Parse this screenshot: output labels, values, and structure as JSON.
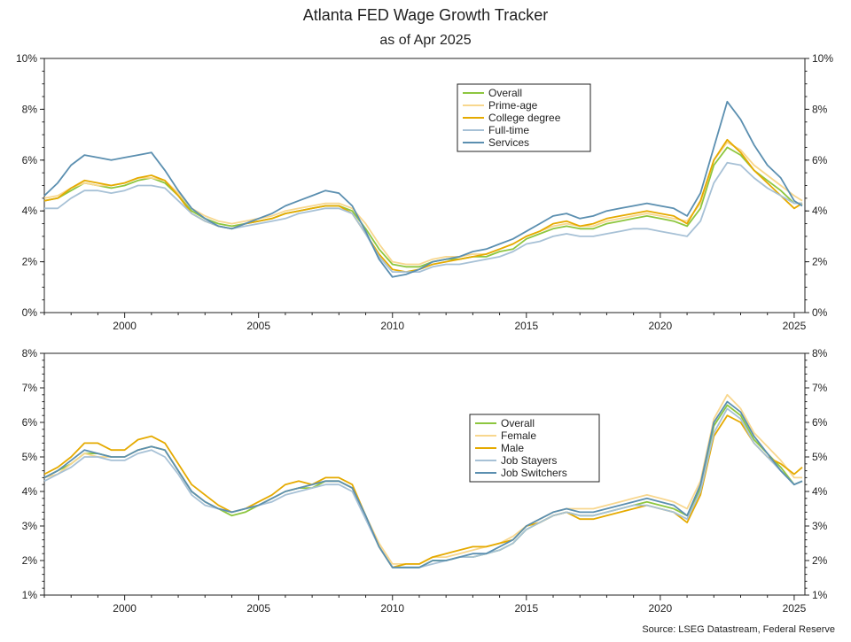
{
  "title": "Atlanta FED Wage Growth Tracker",
  "subtitle": "as of Apr 2025",
  "source": "Source: LSEG Datastream, Federal Reserve",
  "chart_data": [
    {
      "type": "line",
      "xlim": [
        1997.0,
        2025.4
      ],
      "ylim": [
        0,
        10
      ],
      "x_ticks": [
        2000,
        2005,
        2010,
        2015,
        2020,
        2025
      ],
      "x_tick_labels": [
        "2000",
        "2005",
        "2010",
        "2015",
        "2020",
        "2025"
      ],
      "y_ticks": [
        0,
        2,
        4,
        6,
        8,
        10
      ],
      "y_tick_labels": [
        "0%",
        "2%",
        "4%",
        "6%",
        "8%",
        "10%"
      ],
      "legend_position": "top-center-right",
      "x": [
        1997.0,
        1997.5,
        1998.0,
        1998.5,
        1999.0,
        1999.5,
        2000.0,
        2000.5,
        2001.0,
        2001.5,
        2002.0,
        2002.5,
        2003.0,
        2003.5,
        2004.0,
        2004.5,
        2005.0,
        2005.5,
        2006.0,
        2006.5,
        2007.0,
        2007.5,
        2008.0,
        2008.5,
        2009.0,
        2009.5,
        2010.0,
        2010.5,
        2011.0,
        2011.5,
        2012.0,
        2012.5,
        2013.0,
        2013.5,
        2014.0,
        2014.5,
        2015.0,
        2015.5,
        2016.0,
        2016.5,
        2017.0,
        2017.5,
        2018.0,
        2018.5,
        2019.0,
        2019.5,
        2020.0,
        2020.5,
        2021.0,
        2021.5,
        2022.0,
        2022.5,
        2023.0,
        2023.5,
        2024.0,
        2024.5,
        2025.0,
        2025.3
      ],
      "series": [
        {
          "name": "Overall",
          "color": "#8dc63f",
          "values": [
            4.4,
            4.5,
            4.8,
            5.1,
            5.0,
            4.9,
            5.0,
            5.2,
            5.3,
            5.1,
            4.6,
            4.0,
            3.7,
            3.5,
            3.4,
            3.5,
            3.6,
            3.7,
            3.9,
            4.0,
            4.1,
            4.2,
            4.2,
            4.0,
            3.3,
            2.5,
            1.9,
            1.8,
            1.8,
            2.0,
            2.1,
            2.1,
            2.2,
            2.2,
            2.4,
            2.5,
            2.9,
            3.1,
            3.3,
            3.4,
            3.3,
            3.3,
            3.5,
            3.6,
            3.7,
            3.8,
            3.7,
            3.6,
            3.4,
            4.1,
            5.8,
            6.5,
            6.2,
            5.6,
            5.2,
            4.8,
            4.3,
            4.3
          ]
        },
        {
          "name": "Prime-age",
          "color": "#f8d78e",
          "values": [
            4.5,
            4.6,
            4.9,
            5.1,
            5.0,
            5.0,
            5.1,
            5.3,
            5.3,
            5.2,
            4.7,
            4.1,
            3.8,
            3.6,
            3.5,
            3.6,
            3.7,
            3.8,
            4.0,
            4.1,
            4.2,
            4.3,
            4.3,
            4.1,
            3.5,
            2.7,
            2.0,
            1.9,
            1.9,
            2.1,
            2.2,
            2.2,
            2.3,
            2.3,
            2.5,
            2.7,
            3.0,
            3.2,
            3.4,
            3.5,
            3.4,
            3.4,
            3.6,
            3.7,
            3.8,
            3.9,
            3.8,
            3.7,
            3.6,
            4.3,
            6.0,
            6.7,
            6.4,
            5.8,
            5.4,
            5.0,
            4.6,
            4.4
          ]
        },
        {
          "name": "College degree",
          "color": "#e5aa00",
          "values": [
            4.4,
            4.5,
            4.9,
            5.2,
            5.1,
            5.0,
            5.1,
            5.3,
            5.4,
            5.2,
            4.6,
            3.9,
            3.6,
            3.4,
            3.3,
            3.5,
            3.6,
            3.7,
            3.9,
            4.0,
            4.1,
            4.2,
            4.2,
            3.9,
            3.1,
            2.3,
            1.7,
            1.6,
            1.7,
            1.9,
            2.0,
            2.1,
            2.2,
            2.3,
            2.5,
            2.7,
            3.0,
            3.2,
            3.5,
            3.6,
            3.4,
            3.5,
            3.7,
            3.8,
            3.9,
            4.0,
            3.9,
            3.8,
            3.5,
            4.4,
            6.0,
            6.8,
            6.3,
            5.6,
            5.1,
            4.6,
            4.1,
            4.3
          ]
        },
        {
          "name": "Full-time",
          "color": "#a7c1d6",
          "values": [
            4.1,
            4.1,
            4.5,
            4.8,
            4.8,
            4.7,
            4.8,
            5.0,
            5.0,
            4.9,
            4.4,
            3.9,
            3.6,
            3.4,
            3.3,
            3.4,
            3.5,
            3.6,
            3.7,
            3.9,
            4.0,
            4.1,
            4.1,
            3.9,
            3.1,
            2.2,
            1.6,
            1.6,
            1.6,
            1.8,
            1.9,
            1.9,
            2.0,
            2.1,
            2.2,
            2.4,
            2.7,
            2.8,
            3.0,
            3.1,
            3.0,
            3.0,
            3.1,
            3.2,
            3.3,
            3.3,
            3.2,
            3.1,
            3.0,
            3.6,
            5.1,
            5.9,
            5.8,
            5.3,
            4.9,
            4.6,
            4.3,
            4.3
          ]
        },
        {
          "name": "Services",
          "color": "#5b8fb0",
          "values": [
            4.6,
            5.1,
            5.8,
            6.2,
            6.1,
            6.0,
            6.1,
            6.2,
            6.3,
            5.6,
            4.8,
            4.1,
            3.7,
            3.4,
            3.3,
            3.5,
            3.7,
            3.9,
            4.2,
            4.4,
            4.6,
            4.8,
            4.7,
            4.2,
            3.2,
            2.1,
            1.4,
            1.5,
            1.7,
            2.0,
            2.1,
            2.2,
            2.4,
            2.5,
            2.7,
            2.9,
            3.2,
            3.5,
            3.8,
            3.9,
            3.7,
            3.8,
            4.0,
            4.1,
            4.2,
            4.3,
            4.2,
            4.1,
            3.8,
            4.7,
            6.5,
            8.3,
            7.6,
            6.6,
            5.8,
            5.3,
            4.4,
            4.2
          ]
        }
      ]
    },
    {
      "type": "line",
      "xlim": [
        1997.0,
        2025.4
      ],
      "ylim": [
        1,
        8
      ],
      "x_ticks": [
        2000,
        2005,
        2010,
        2015,
        2020,
        2025
      ],
      "x_tick_labels": [
        "2000",
        "2005",
        "2010",
        "2015",
        "2020",
        "2025"
      ],
      "y_ticks": [
        1,
        2,
        3,
        4,
        5,
        6,
        7,
        8
      ],
      "y_tick_labels": [
        "1%",
        "2%",
        "3%",
        "4%",
        "5%",
        "6%",
        "7%",
        "8%"
      ],
      "legend_position": "center-right",
      "x": [
        1997.0,
        1997.5,
        1998.0,
        1998.5,
        1999.0,
        1999.5,
        2000.0,
        2000.5,
        2001.0,
        2001.5,
        2002.0,
        2002.5,
        2003.0,
        2003.5,
        2004.0,
        2004.5,
        2005.0,
        2005.5,
        2006.0,
        2006.5,
        2007.0,
        2007.5,
        2008.0,
        2008.5,
        2009.0,
        2009.5,
        2010.0,
        2010.5,
        2011.0,
        2011.5,
        2012.0,
        2012.5,
        2013.0,
        2013.5,
        2014.0,
        2014.5,
        2015.0,
        2015.5,
        2016.0,
        2016.5,
        2017.0,
        2017.5,
        2018.0,
        2018.5,
        2019.0,
        2019.5,
        2020.0,
        2020.5,
        2021.0,
        2021.5,
        2022.0,
        2022.5,
        2023.0,
        2023.5,
        2024.0,
        2024.5,
        2025.0,
        2025.3
      ],
      "series": [
        {
          "name": "Overall",
          "color": "#8dc63f",
          "values": [
            4.4,
            4.6,
            4.8,
            5.1,
            5.1,
            5.0,
            5.0,
            5.2,
            5.3,
            5.2,
            4.6,
            4.0,
            3.7,
            3.5,
            3.3,
            3.4,
            3.6,
            3.8,
            4.0,
            4.1,
            4.1,
            4.3,
            4.3,
            4.1,
            3.3,
            2.4,
            1.8,
            1.8,
            1.8,
            2.0,
            2.0,
            2.1,
            2.1,
            2.2,
            2.3,
            2.5,
            2.9,
            3.1,
            3.3,
            3.4,
            3.3,
            3.3,
            3.4,
            3.5,
            3.6,
            3.7,
            3.6,
            3.5,
            3.3,
            4.1,
            5.9,
            6.5,
            6.2,
            5.5,
            5.1,
            4.7,
            4.2,
            4.3
          ]
        },
        {
          "name": "Female",
          "color": "#f8d78e",
          "values": [
            4.4,
            4.5,
            4.8,
            5.1,
            5.0,
            5.0,
            5.0,
            5.2,
            5.3,
            5.2,
            4.6,
            4.0,
            3.7,
            3.5,
            3.4,
            3.5,
            3.6,
            3.8,
            4.0,
            4.1,
            4.2,
            4.3,
            4.3,
            4.1,
            3.3,
            2.5,
            1.9,
            1.9,
            1.9,
            2.1,
            2.1,
            2.2,
            2.3,
            2.4,
            2.5,
            2.7,
            3.0,
            3.2,
            3.4,
            3.5,
            3.5,
            3.5,
            3.6,
            3.7,
            3.8,
            3.9,
            3.8,
            3.7,
            3.5,
            4.3,
            6.1,
            6.8,
            6.4,
            5.7,
            5.3,
            4.9,
            4.4,
            4.4
          ]
        },
        {
          "name": "Male",
          "color": "#e5aa00",
          "values": [
            4.5,
            4.7,
            5.0,
            5.4,
            5.4,
            5.2,
            5.2,
            5.5,
            5.6,
            5.4,
            4.8,
            4.2,
            3.9,
            3.6,
            3.4,
            3.5,
            3.7,
            3.9,
            4.2,
            4.3,
            4.2,
            4.4,
            4.4,
            4.2,
            3.3,
            2.4,
            1.8,
            1.9,
            1.9,
            2.1,
            2.2,
            2.3,
            2.4,
            2.4,
            2.5,
            2.6,
            3.0,
            3.1,
            3.3,
            3.4,
            3.2,
            3.2,
            3.3,
            3.4,
            3.5,
            3.6,
            3.5,
            3.4,
            3.1,
            3.9,
            5.6,
            6.2,
            6.0,
            5.4,
            5.0,
            4.8,
            4.5,
            4.7
          ]
        },
        {
          "name": "Job Stayers",
          "color": "#a7c1d6",
          "values": [
            4.3,
            4.5,
            4.7,
            5.0,
            5.0,
            4.9,
            4.9,
            5.1,
            5.2,
            5.0,
            4.5,
            3.9,
            3.6,
            3.5,
            3.4,
            3.5,
            3.6,
            3.7,
            3.9,
            4.0,
            4.1,
            4.2,
            4.2,
            4.0,
            3.2,
            2.4,
            1.8,
            1.8,
            1.8,
            1.9,
            2.0,
            2.1,
            2.1,
            2.2,
            2.3,
            2.5,
            2.9,
            3.1,
            3.3,
            3.4,
            3.3,
            3.3,
            3.4,
            3.5,
            3.6,
            3.6,
            3.5,
            3.4,
            3.2,
            4.0,
            5.7,
            6.4,
            6.1,
            5.4,
            5.0,
            4.6,
            4.2,
            4.3
          ]
        },
        {
          "name": "Job Switchers",
          "color": "#5b8fb0",
          "values": [
            4.4,
            4.6,
            4.9,
            5.2,
            5.1,
            5.0,
            5.0,
            5.2,
            5.3,
            5.2,
            4.6,
            4.0,
            3.7,
            3.5,
            3.4,
            3.5,
            3.6,
            3.8,
            4.0,
            4.1,
            4.2,
            4.3,
            4.3,
            4.1,
            3.3,
            2.4,
            1.8,
            1.8,
            1.8,
            2.0,
            2.0,
            2.1,
            2.2,
            2.2,
            2.4,
            2.6,
            3.0,
            3.2,
            3.4,
            3.5,
            3.4,
            3.4,
            3.5,
            3.6,
            3.7,
            3.8,
            3.7,
            3.6,
            3.3,
            4.2,
            6.0,
            6.6,
            6.3,
            5.6,
            5.1,
            4.6,
            4.2,
            4.3
          ]
        }
      ]
    }
  ]
}
